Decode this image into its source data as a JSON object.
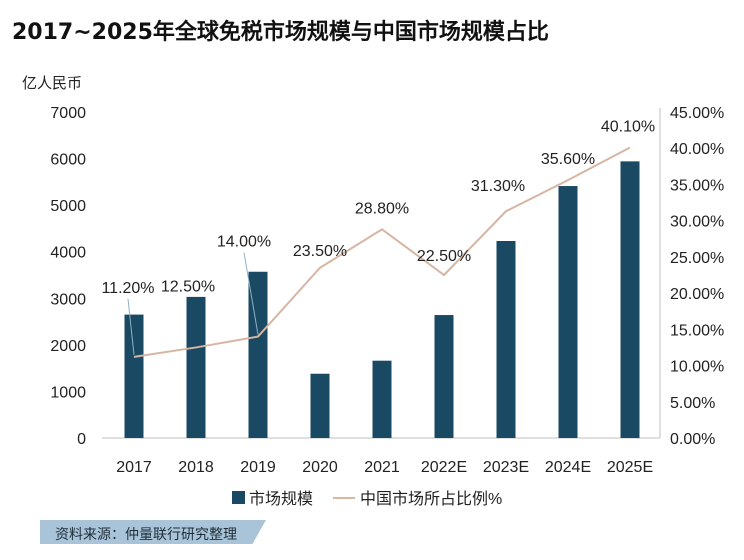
{
  "title": "2017~2025年全球免税市场规模与中国市场规模占比",
  "source": "资料来源：仲量联行研究整理",
  "colors": {
    "bar": "#1a4a63",
    "line": "#d6b5a3",
    "axis": "#bfbfbf",
    "text": "#222222"
  },
  "chart_data": {
    "type": "bar+line",
    "categories": [
      "2017",
      "2018",
      "2019",
      "2020",
      "2021",
      "2022E",
      "2023E",
      "2024E",
      "2025E"
    ],
    "series": [
      {
        "name": "市场规模",
        "type": "bar",
        "axis": "left",
        "values": [
          2650,
          3030,
          3570,
          1380,
          1660,
          2640,
          4230,
          5410,
          5940
        ]
      },
      {
        "name": "中国市场所占比例%",
        "type": "line",
        "axis": "right",
        "values": [
          11.2,
          12.5,
          14.0,
          23.5,
          28.8,
          22.5,
          31.3,
          35.6,
          40.1
        ],
        "labels": [
          "11.20%",
          "12.50%",
          "14.00%",
          "23.50%",
          "28.80%",
          "22.50%",
          "31.30%",
          "35.60%",
          "40.10%"
        ]
      }
    ],
    "y_left": {
      "label": "亿人民币",
      "min": 0,
      "max": 7000,
      "ticks": [
        "0",
        "1000",
        "2000",
        "3000",
        "4000",
        "5000",
        "6000",
        "7000"
      ]
    },
    "y_right": {
      "min": 0,
      "max": 45,
      "ticks": [
        "0.00%",
        "5.00%",
        "10.00%",
        "15.00%",
        "20.00%",
        "25.00%",
        "30.00%",
        "35.00%",
        "40.00%",
        "45.00%"
      ]
    },
    "grid": false,
    "legend_position": "bottom"
  }
}
